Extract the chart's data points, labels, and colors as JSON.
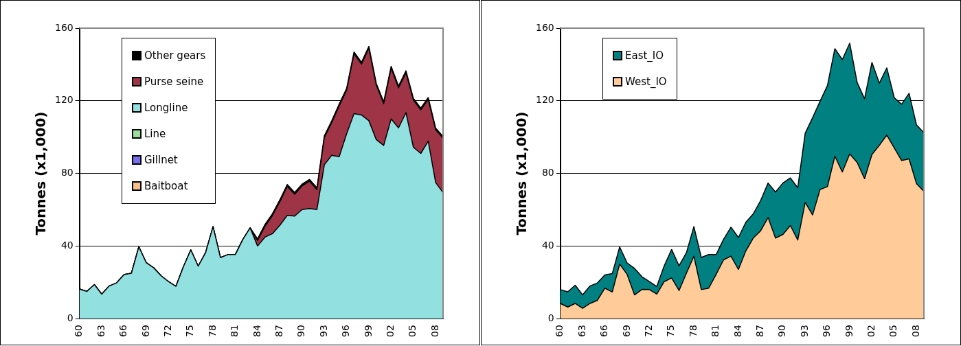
{
  "chart_data": [
    {
      "type": "area",
      "stacked": true,
      "ylabel": "Tonnes (x1,000)",
      "categories": [
        "60",
        null,
        null,
        "63",
        null,
        null,
        "66",
        null,
        null,
        "69",
        null,
        null,
        "72",
        null,
        null,
        "75",
        null,
        null,
        "78",
        null,
        null,
        "81",
        null,
        null,
        "84",
        null,
        null,
        "87",
        null,
        null,
        "90",
        null,
        null,
        "93",
        null,
        null,
        "96",
        null,
        null,
        "99",
        null,
        null,
        "02",
        null,
        null,
        "05",
        null,
        null,
        "08",
        null
      ],
      "ylim": [
        0,
        160
      ],
      "yticks": [
        0,
        40,
        80,
        120,
        160
      ],
      "grid": "y",
      "legend": "top left",
      "marker": "none",
      "series": [
        {
          "name": "Baitboat",
          "color": "#fbbf86",
          "values": [
            null,
            null,
            null,
            null,
            null,
            null,
            null,
            null,
            null,
            null,
            null,
            null,
            null,
            null,
            null,
            null,
            null,
            null,
            null,
            null,
            null,
            null,
            null,
            null,
            null,
            null,
            null,
            null,
            null,
            null,
            null,
            null,
            null,
            null,
            null,
            null,
            null,
            null,
            null,
            null,
            null,
            null,
            null,
            null,
            null,
            null,
            null,
            null,
            null,
            null
          ]
        },
        {
          "name": "Gillnet",
          "color": "#7b6cf0",
          "values": [
            null,
            null,
            null,
            null,
            null,
            null,
            null,
            null,
            null,
            null,
            null,
            null,
            null,
            null,
            null,
            null,
            null,
            null,
            null,
            null,
            null,
            null,
            null,
            null,
            null,
            null,
            null,
            null,
            null,
            null,
            null,
            null,
            null,
            null,
            null,
            null,
            null,
            null,
            null,
            null,
            null,
            null,
            null,
            null,
            null,
            null,
            null,
            null,
            null,
            null
          ]
        },
        {
          "name": "Line",
          "color": "#98e098",
          "values": [
            null,
            null,
            null,
            null,
            null,
            null,
            null,
            null,
            null,
            null,
            null,
            null,
            null,
            null,
            null,
            null,
            null,
            null,
            null,
            null,
            null,
            null,
            null,
            null,
            null,
            null,
            null,
            null,
            null,
            null,
            null,
            null,
            null,
            null,
            null,
            null,
            null,
            null,
            null,
            null,
            null,
            null,
            null,
            null,
            null,
            null,
            null,
            null,
            null,
            null
          ]
        },
        {
          "name": "Longline",
          "color": "#93e0e0",
          "values": [
            16.3,
            15,
            18.8,
            13.5,
            18,
            19.7,
            24.3,
            25,
            39.6,
            30.8,
            28,
            23.6,
            20.4,
            17.8,
            28.5,
            37.9,
            28.9,
            36.4,
            50.7,
            33.6,
            35.3,
            35.3,
            43.5,
            50,
            40,
            44.9,
            46.8,
            51.4,
            56.9,
            56.5,
            60.1,
            60.7,
            60.1,
            84.7,
            90,
            89.2,
            101.8,
            112.9,
            112.2,
            109,
            98.6,
            95.4,
            110,
            105.1,
            113.5,
            94.4,
            91,
            97.8,
            75,
            69.4
          ]
        },
        {
          "name": "Purse seine",
          "color": "#9e3446",
          "values": [
            0,
            0,
            0,
            0,
            0,
            0,
            0,
            0,
            0,
            0,
            0,
            0,
            0,
            0,
            0,
            0,
            0,
            0,
            0,
            0,
            0,
            0,
            0,
            0,
            3,
            6,
            10,
            13,
            16,
            12,
            13,
            15,
            11,
            15,
            18,
            28,
            24,
            33,
            28,
            40,
            30,
            23,
            28,
            22,
            22,
            26,
            24,
            23,
            29,
            30
          ]
        },
        {
          "name": "Other gears",
          "color": "#000000",
          "values": [
            0,
            0,
            0,
            0,
            0,
            0,
            0,
            0,
            0,
            0,
            0,
            0,
            0,
            0,
            0,
            0,
            0,
            0,
            0,
            0,
            0,
            0,
            0,
            0,
            1,
            1,
            1,
            1,
            1,
            1,
            1,
            1,
            1,
            1,
            1,
            1,
            1,
            1,
            1,
            1,
            1,
            1,
            1,
            1,
            1,
            1,
            1,
            1,
            1,
            1
          ]
        }
      ]
    },
    {
      "type": "area",
      "stacked": true,
      "ylabel": "Tonnes (x1,000)",
      "categories": [
        "60",
        null,
        null,
        "63",
        null,
        null,
        "66",
        null,
        null,
        "69",
        null,
        null,
        "72",
        null,
        null,
        "75",
        null,
        null,
        "78",
        null,
        null,
        "81",
        null,
        null,
        "84",
        null,
        null,
        "87",
        null,
        null,
        "90",
        null,
        null,
        "93",
        null,
        null,
        "96",
        null,
        null,
        "99",
        null,
        null,
        "02",
        null,
        null,
        "05",
        null,
        null,
        "08",
        null
      ],
      "ylim": [
        0,
        160
      ],
      "yticks": [
        0,
        40,
        80,
        120,
        160
      ],
      "grid": "y",
      "legend": "top left",
      "marker": "none",
      "series": [
        {
          "name": "West_IO",
          "color": "#ffcc99",
          "values": [
            8.4,
            6.4,
            8.4,
            5.7,
            8.4,
            10.1,
            16.8,
            14.7,
            30.1,
            24.4,
            13.1,
            16.1,
            16,
            13.5,
            20.4,
            22.4,
            15.5,
            25.1,
            34.4,
            16,
            16.8,
            24.4,
            32.4,
            34.4,
            27.1,
            37.3,
            44.4,
            48.4,
            55.7,
            44.4,
            46.4,
            51.3,
            43.3,
            64,
            57.1,
            71.1,
            72.7,
            89.5,
            80.8,
            90.7,
            86.1,
            77.1,
            90.4,
            95.5,
            101.1,
            94.1,
            87.1,
            88,
            74.4,
            70.1
          ]
        },
        {
          "name": "East_IO",
          "color": "#008080",
          "values": [
            7.6,
            8.4,
            10,
            7.4,
            9.6,
            9.6,
            7.3,
            10.1,
            9.4,
            6.3,
            14.6,
            7,
            4.4,
            4.2,
            8.7,
            15.7,
            13.6,
            11.3,
            16.3,
            17.7,
            18.5,
            10.9,
            11.3,
            16,
            17.6,
            15.8,
            13.3,
            16.7,
            19,
            25.3,
            28.3,
            26.2,
            28.8,
            38.1,
            53.6,
            48.6,
            55.7,
            59.2,
            61.9,
            61,
            44,
            44,
            50.7,
            34.2,
            37,
            27.6,
            31,
            36.1,
            32.3,
            32.3
          ]
        }
      ]
    }
  ]
}
